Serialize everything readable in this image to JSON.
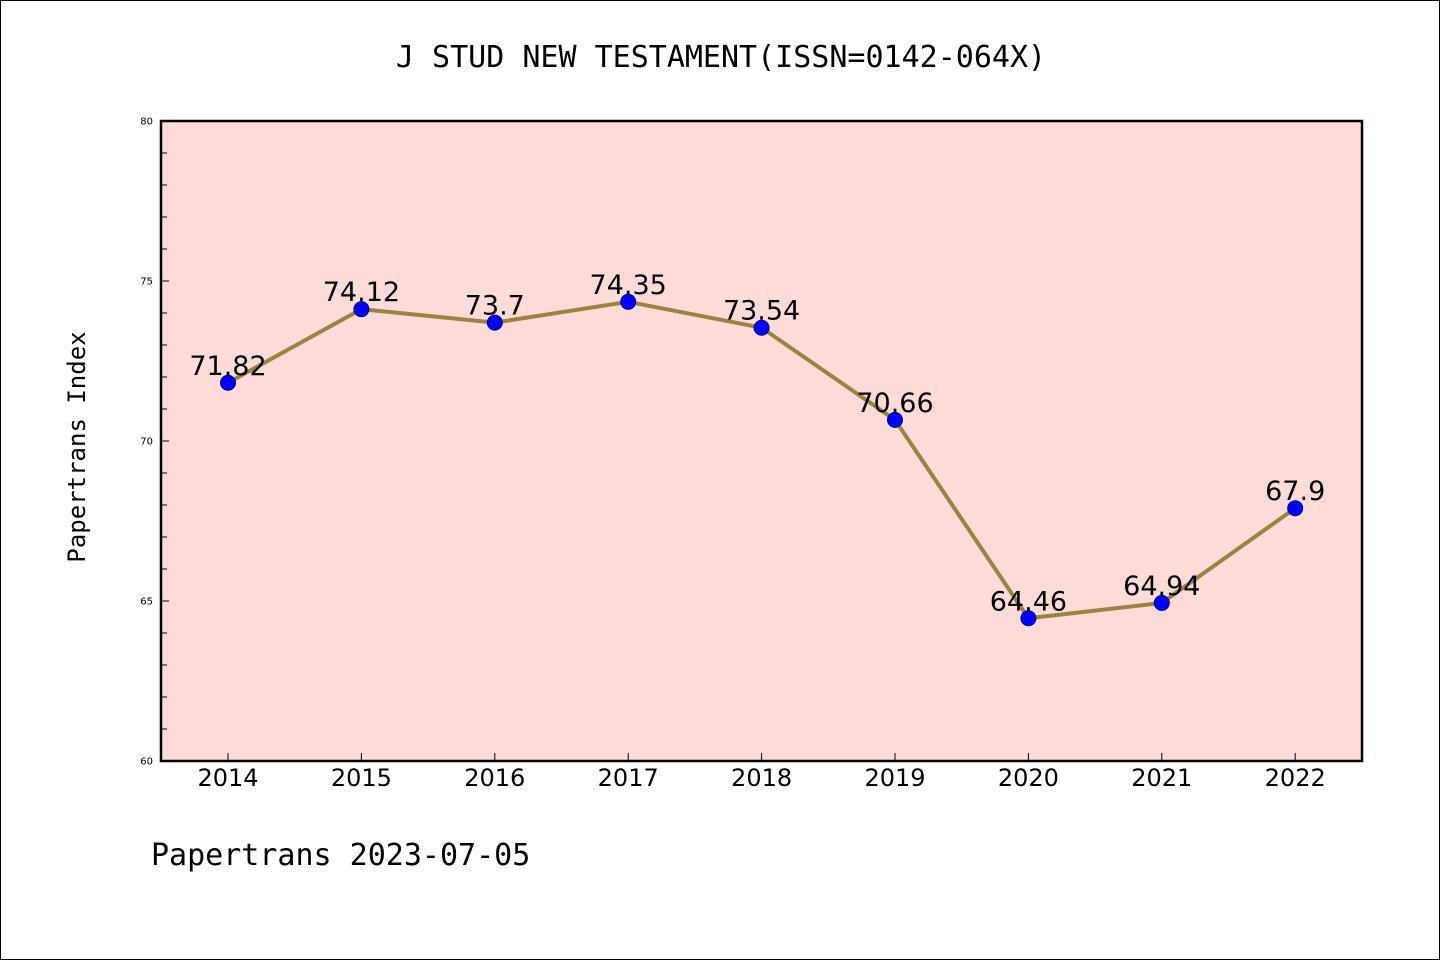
{
  "chart_data": {
    "type": "line",
    "title": "J STUD NEW TESTAMENT(ISSN=0142-064X)",
    "ylabel": "Papertrans Index",
    "xlabel": "",
    "categories": [
      "2014",
      "2015",
      "2016",
      "2017",
      "2018",
      "2019",
      "2020",
      "2021",
      "2022"
    ],
    "series": [
      {
        "values": [
          71.82,
          74.12,
          73.7,
          74.35,
          73.54,
          70.66,
          64.46,
          64.94,
          67.9
        ],
        "labels": [
          "71.82",
          "74.12",
          "73.7",
          "74.35",
          "73.54",
          "70.66",
          "64.46",
          "64.94",
          "67.9"
        ]
      }
    ],
    "ylim": [
      60,
      80
    ],
    "yticks": [
      "60",
      "65",
      "70",
      "75",
      "80"
    ],
    "grid": false,
    "colors": {
      "plot_background": "#fddbd8",
      "line": "#9a8540",
      "marker_fill": "#0000ff",
      "marker_edge": "#000080"
    }
  },
  "footer": "Papertrans 2023-07-05"
}
